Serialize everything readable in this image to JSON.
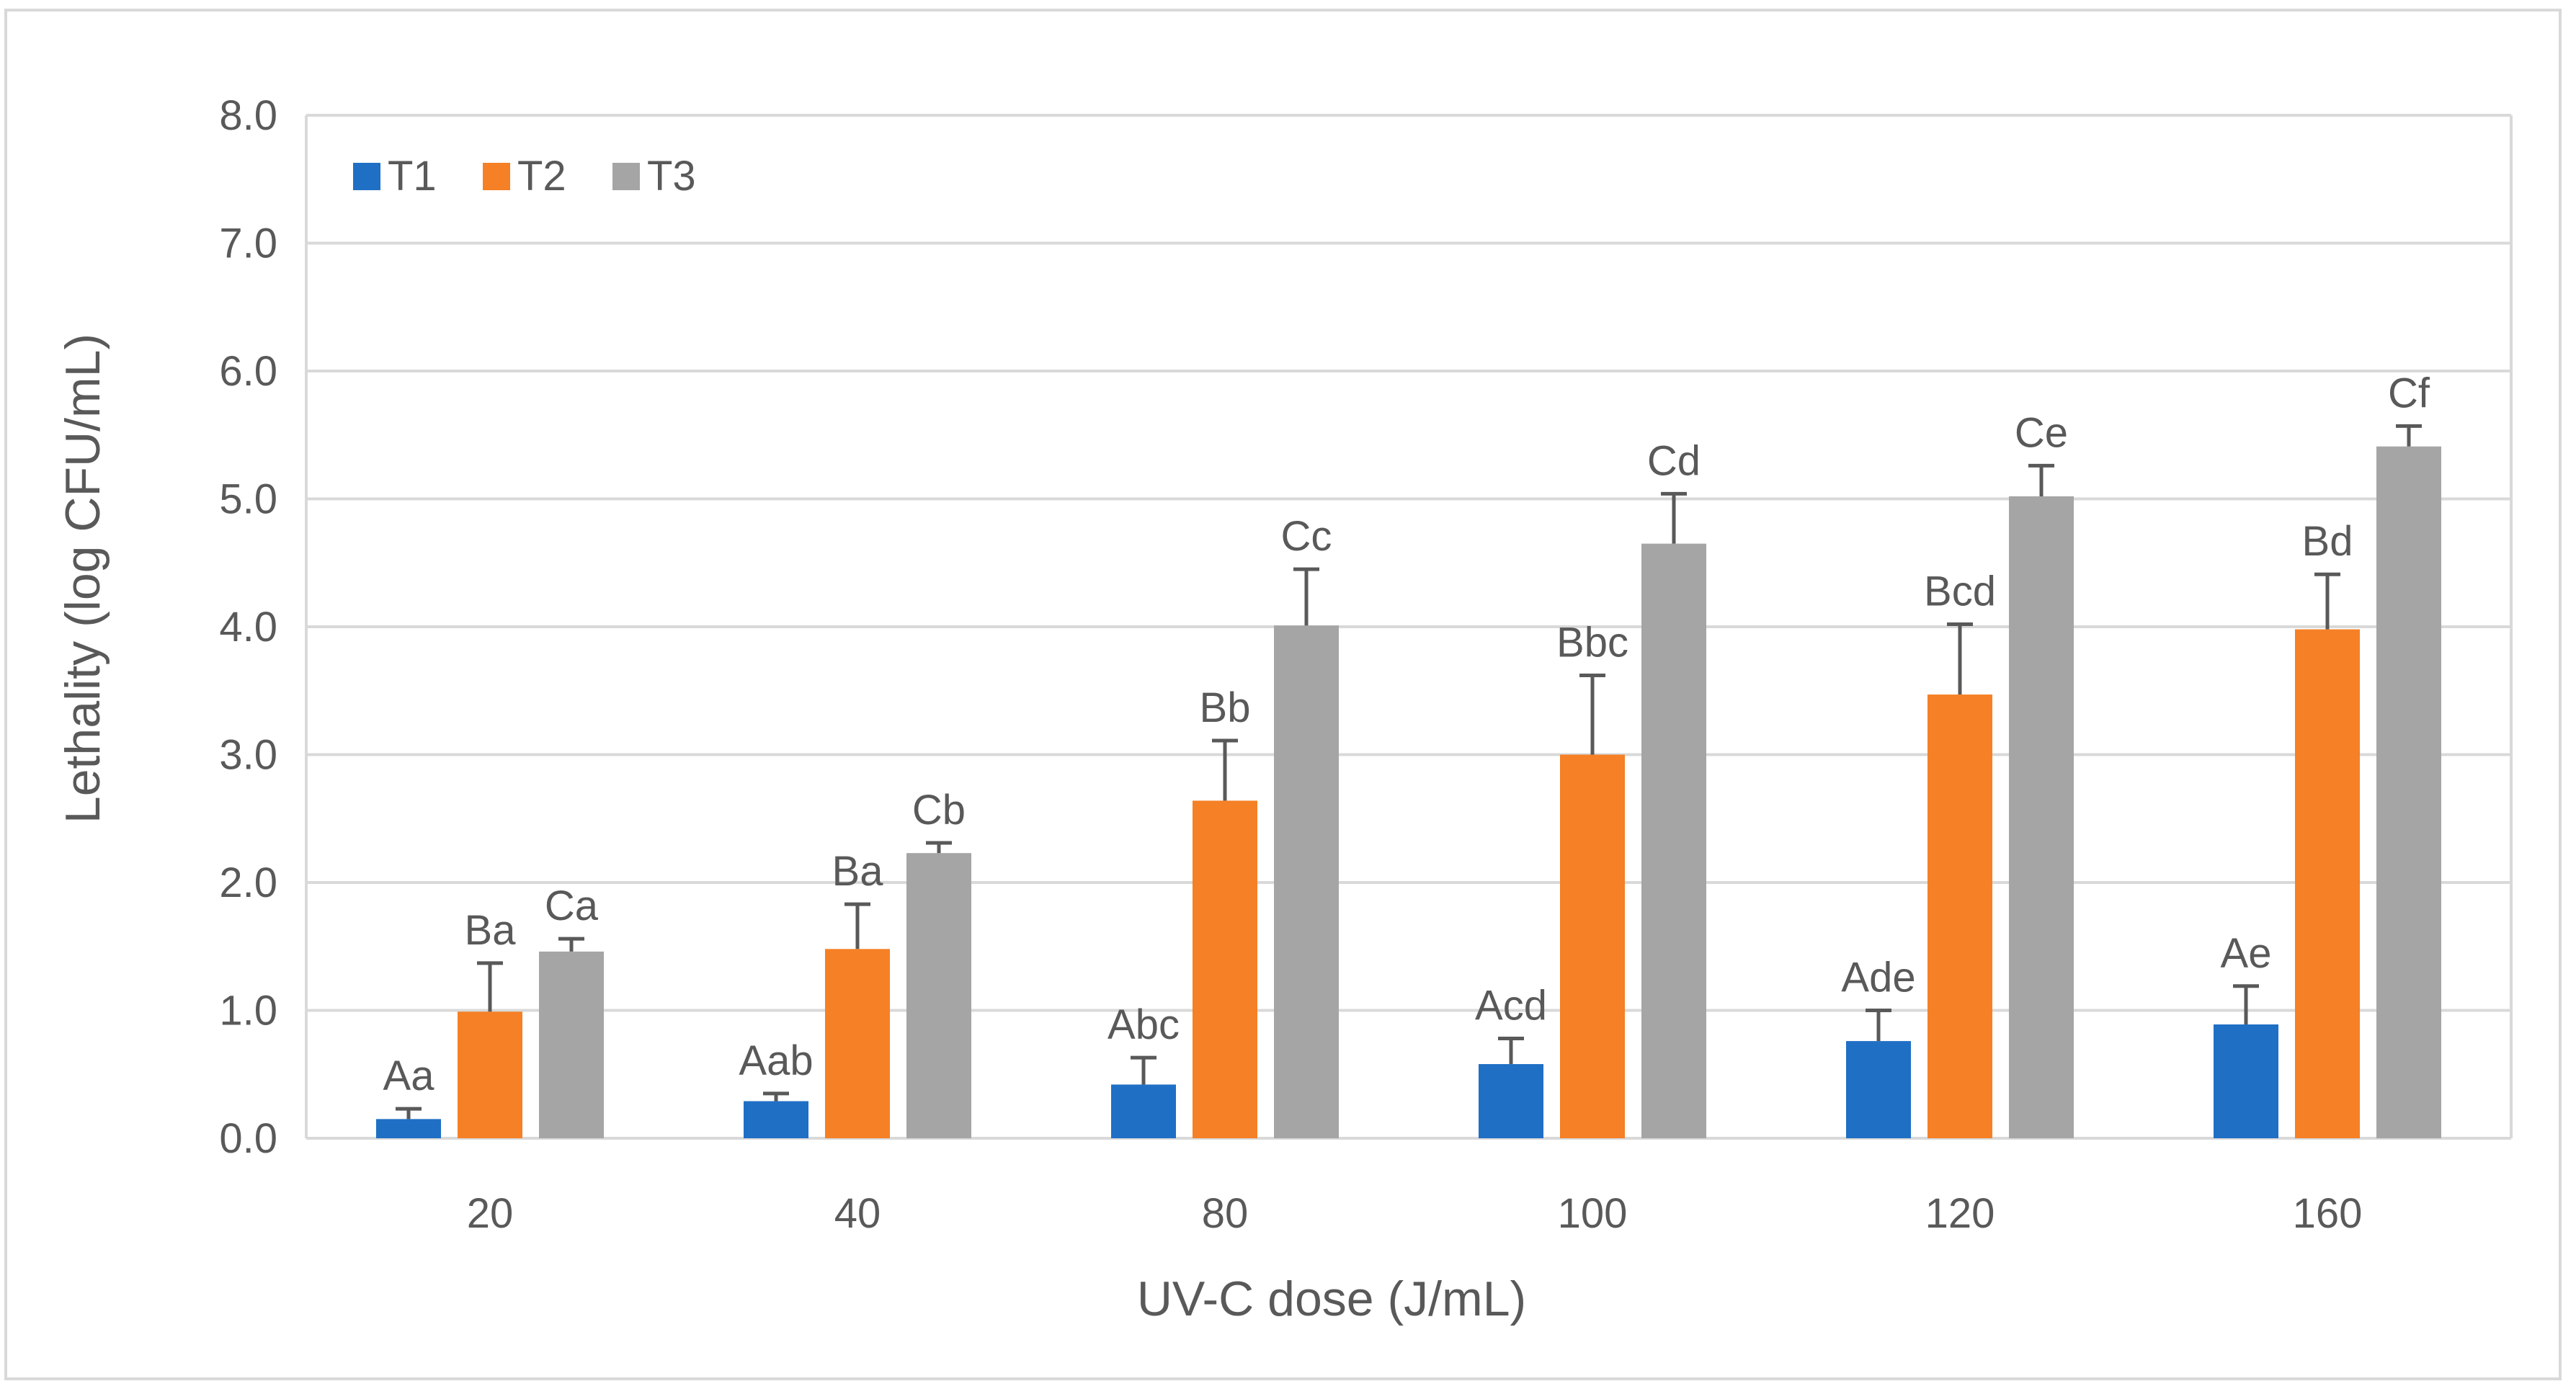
{
  "chart_data": {
    "type": "bar",
    "title": "",
    "xlabel": "UV-C dose (J/mL)",
    "ylabel": "Lethality (log CFU/mL)",
    "ylim": [
      0,
      8
    ],
    "ytick_labels": [
      "0.0",
      "1.0",
      "2.0",
      "3.0",
      "4.0",
      "5.0",
      "6.0",
      "7.0",
      "8.0"
    ],
    "grid": true,
    "legend_position": "top-left",
    "categories": [
      "20",
      "40",
      "80",
      "100",
      "120",
      "160"
    ],
    "series": [
      {
        "name": "T1",
        "color": "#1F6FC5",
        "values": [
          0.15,
          0.29,
          0.42,
          0.58,
          0.76,
          0.89
        ],
        "errors": [
          0.08,
          0.06,
          0.21,
          0.2,
          0.24,
          0.3
        ],
        "labels": [
          "Aa",
          "Aab",
          "Abc",
          "Acd",
          "Ade",
          "Ae"
        ]
      },
      {
        "name": "T2",
        "color": "#F58025",
        "values": [
          0.99,
          1.48,
          2.64,
          3.0,
          3.47,
          3.98
        ],
        "errors": [
          0.38,
          0.35,
          0.47,
          0.62,
          0.55,
          0.43
        ],
        "labels": [
          "Ba",
          "Ba",
          "Bb",
          "Bbc",
          "Bcd",
          "Bd"
        ]
      },
      {
        "name": "T3",
        "color": "#A5A5A5",
        "values": [
          1.46,
          2.23,
          4.01,
          4.65,
          5.02,
          5.41
        ],
        "errors": [
          0.1,
          0.08,
          0.44,
          0.39,
          0.24,
          0.16
        ],
        "labels": [
          "Ca",
          "Cb",
          "Cc",
          "Cd",
          "Ce",
          "Cf"
        ]
      }
    ]
  }
}
